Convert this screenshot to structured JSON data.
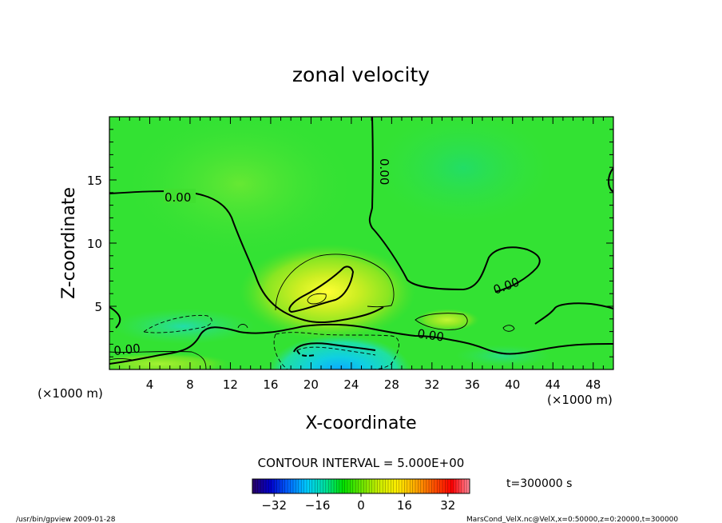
{
  "chart_data": {
    "type": "heatmap",
    "title": "zonal velocity",
    "xlabel": "X-coordinate",
    "ylabel": "Z-coordinate",
    "x_unit_note": "(×1000 m)",
    "y_unit_note": "(×1000 m)",
    "xlim": [
      0,
      50
    ],
    "ylim": [
      0,
      20
    ],
    "x_ticks": [
      4,
      8,
      12,
      16,
      20,
      24,
      28,
      32,
      36,
      40,
      44,
      48
    ],
    "y_ticks": [
      5,
      10,
      15
    ],
    "contour_interval_label": "CONTOUR INTERVAL = 5.000E+00",
    "time_label": "t=300000 s",
    "contour_labels": [
      "0.00",
      "0.00",
      "0.00",
      "0.00",
      "0.00"
    ],
    "colorbar": {
      "range": [
        -40,
        40
      ],
      "ticks": [
        -32,
        -16,
        0,
        16,
        32
      ],
      "colors": [
        "#2a0066",
        "#0000cc",
        "#0066ff",
        "#00ccff",
        "#00e0a0",
        "#00e000",
        "#66e600",
        "#ccee00",
        "#ffee00",
        "#ffaa00",
        "#ff5500",
        "#ff0000",
        "#ff8899"
      ]
    }
  },
  "footer": {
    "left": "/usr/bin/gpview  2009-01-28",
    "right": "MarsCond_VelX.nc@VelX,x=0:50000,z=0:20000,t=300000"
  },
  "colors": {
    "field_background": "#33e233",
    "contour": "#000000"
  }
}
